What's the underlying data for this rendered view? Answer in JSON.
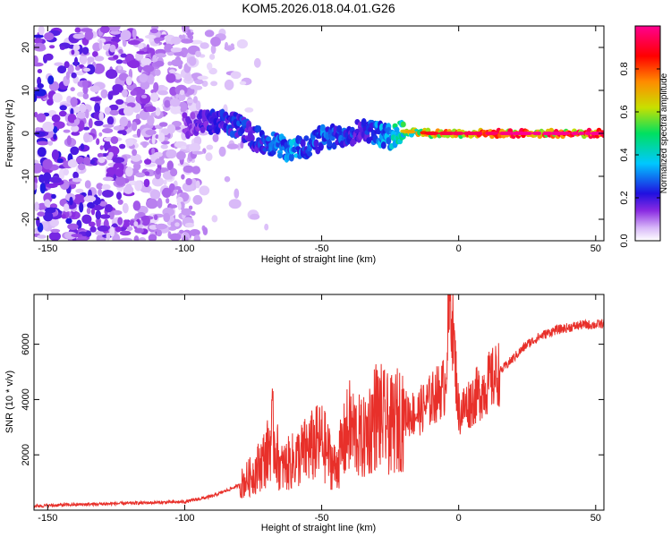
{
  "title": "KOM5.2026.018.04.01.G26",
  "chart_data": [
    {
      "type": "heatmap",
      "panel": "spectrogram",
      "xlabel": "Height of straight line (km)",
      "ylabel": "Frequency (Hz)",
      "xlim": [
        -155,
        53
      ],
      "ylim": [
        -25,
        25
      ],
      "xticks": [
        -150,
        -100,
        -50,
        0,
        50
      ],
      "yticks": [
        20,
        10,
        0,
        -10,
        -20
      ],
      "colorbar": {
        "label": "Normalized spectral amplitude",
        "range": [
          0,
          1
        ],
        "ticks": [
          0.0,
          0.2,
          0.4,
          0.6,
          0.8
        ],
        "colors": [
          "#ffffff",
          "#d8b8f8",
          "#8a2be2",
          "#2010e0",
          "#00c8ff",
          "#00e060",
          "#c8e000",
          "#ff8c00",
          "#ff0000",
          "#ff0090"
        ]
      },
      "ridge": {
        "description": "Dominant frequency trace",
        "x": [
          -100,
          -90,
          -80,
          -75,
          -70,
          -65,
          -60,
          -55,
          -50,
          -45,
          -40,
          -35,
          -30,
          -25,
          -20,
          -10,
          0,
          10,
          20,
          30,
          40,
          50
        ],
        "freq": [
          2,
          2.5,
          2,
          -1,
          -2,
          -3,
          -4,
          -3,
          -1,
          -1,
          0,
          1,
          0,
          -1,
          0.5,
          0,
          0,
          0,
          0,
          0,
          0,
          0
        ],
        "amplitude": [
          0.15,
          0.25,
          0.3,
          0.25,
          0.3,
          0.35,
          0.4,
          0.3,
          0.35,
          0.3,
          0.3,
          0.25,
          0.35,
          0.45,
          0.6,
          0.85,
          0.9,
          0.9,
          0.95,
          0.95,
          0.95,
          0.95
        ]
      }
    },
    {
      "type": "line",
      "panel": "snr",
      "xlabel": "Height of straight line (km)",
      "ylabel": "SNR (10 * v/v)",
      "xlim": [
        -155,
        53
      ],
      "ylim": [
        0,
        7800
      ],
      "xticks": [
        -150,
        -100,
        -50,
        0,
        50
      ],
      "yticks": [
        2000,
        4000,
        6000
      ],
      "series": [
        {
          "name": "SNR",
          "color": "#e8302a",
          "x": [
            -155,
            -140,
            -120,
            -100,
            -90,
            -80,
            -75,
            -70,
            -68,
            -65,
            -60,
            -55,
            -50,
            -45,
            -40,
            -35,
            -30,
            -25,
            -20,
            -15,
            -10,
            -5,
            -3,
            0,
            5,
            10,
            15,
            20,
            25,
            30,
            35,
            40,
            45,
            50,
            53
          ],
          "y": [
            150,
            200,
            250,
            300,
            500,
            900,
            1300,
            2000,
            2800,
            1500,
            1800,
            2200,
            2500,
            1500,
            3000,
            2500,
            3500,
            3000,
            3500,
            3500,
            4000,
            4500,
            7800,
            3500,
            4000,
            4500,
            5000,
            5500,
            6000,
            6300,
            6500,
            6600,
            6700,
            6700,
            6750
          ]
        }
      ]
    }
  ]
}
